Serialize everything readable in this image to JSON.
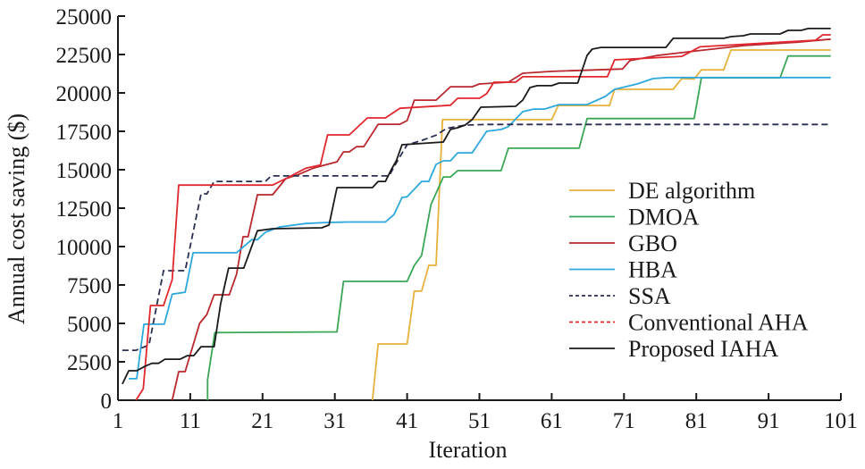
{
  "chart_data": {
    "type": "line",
    "title": "",
    "xlabel": "Iteration",
    "ylabel": "Annual cost saving ($)",
    "xlim": [
      1,
      101
    ],
    "ylim": [
      0,
      25000
    ],
    "xticks": [
      1,
      11,
      21,
      31,
      41,
      51,
      61,
      71,
      81,
      91,
      101
    ],
    "xtick_labels": [
      "1",
      "11",
      "21",
      "31",
      "41",
      "51",
      "61",
      "71",
      "81",
      "91",
      "101"
    ],
    "yticks": [
      0,
      2500,
      5000,
      7500,
      10000,
      12500,
      15000,
      17500,
      20000,
      22500,
      25000
    ],
    "ytick_labels": [
      "0",
      "2500",
      "5000",
      "7500",
      "10000",
      "12500",
      "15000",
      "17500",
      "20000",
      "22500",
      "25000"
    ],
    "grid": false,
    "legend_position": "center-right",
    "series": [
      {
        "name": "DE algorithm",
        "color": "#E8B03C",
        "dash": "solid",
        "points": [
          [
            36.2,
            0
          ],
          [
            37,
            3660
          ],
          [
            41,
            3660
          ],
          [
            42,
            7100
          ],
          [
            43,
            7100
          ],
          [
            44,
            8780
          ],
          [
            45,
            8780
          ],
          [
            45.9,
            18260
          ],
          [
            61,
            18260
          ],
          [
            61.9,
            19180
          ],
          [
            69,
            19180
          ],
          [
            69.7,
            20230
          ],
          [
            77.8,
            20230
          ],
          [
            79,
            20930
          ],
          [
            80.7,
            20900
          ],
          [
            81.7,
            21500
          ],
          [
            84.8,
            21500
          ],
          [
            85.8,
            22790
          ],
          [
            99.6,
            22790
          ]
        ]
      },
      {
        "name": "DMOA",
        "color": "#3AA656",
        "dash": "solid",
        "points": [
          [
            13.4,
            0
          ],
          [
            13.4,
            1340
          ],
          [
            14.4,
            4400
          ],
          [
            31.3,
            4450
          ],
          [
            32.2,
            7730
          ],
          [
            41,
            7730
          ],
          [
            42,
            8780
          ],
          [
            43,
            9420
          ],
          [
            44.3,
            12730
          ],
          [
            46,
            14530
          ],
          [
            47,
            14530
          ],
          [
            48,
            14940
          ],
          [
            54,
            14940
          ],
          [
            55,
            16400
          ],
          [
            64.8,
            16400
          ],
          [
            65.9,
            18330
          ],
          [
            80.7,
            18330
          ],
          [
            81.7,
            20980
          ],
          [
            92.6,
            20980
          ],
          [
            93.7,
            22400
          ],
          [
            99.6,
            22400
          ]
        ]
      },
      {
        "name": "GBO",
        "color": "#B8282E",
        "dash": "solid",
        "points": [
          [
            8.5,
            0
          ],
          [
            9.4,
            1860
          ],
          [
            10.3,
            1860
          ],
          [
            12.3,
            5000
          ],
          [
            13.3,
            5580
          ],
          [
            14.3,
            6860
          ],
          [
            16.4,
            6860
          ],
          [
            17.4,
            8200
          ],
          [
            18.3,
            10640
          ],
          [
            19,
            10640
          ],
          [
            20.3,
            13370
          ],
          [
            22.4,
            13370
          ],
          [
            24.2,
            14420
          ],
          [
            26,
            14700
          ],
          [
            28,
            15100
          ],
          [
            31.3,
            15520
          ],
          [
            32.2,
            16160
          ],
          [
            33,
            16160
          ],
          [
            34,
            16500
          ],
          [
            35,
            16500
          ],
          [
            37,
            17960
          ],
          [
            40,
            17960
          ],
          [
            41,
            18200
          ],
          [
            42,
            19530
          ],
          [
            45,
            19530
          ],
          [
            47,
            20400
          ],
          [
            50,
            20400
          ],
          [
            51,
            20580
          ],
          [
            55,
            20700
          ],
          [
            57,
            21280
          ],
          [
            61,
            21400
          ],
          [
            70.8,
            21560
          ],
          [
            71.8,
            22100
          ],
          [
            75.5,
            22430
          ],
          [
            81,
            22730
          ],
          [
            87.6,
            23080
          ],
          [
            95,
            23300
          ],
          [
            99.6,
            23500
          ]
        ]
      },
      {
        "name": "HBA",
        "color": "#2EA8DC",
        "dash": "solid",
        "points": [
          [
            2.5,
            1400
          ],
          [
            3.6,
            1400
          ],
          [
            4.6,
            4950
          ],
          [
            7.4,
            4950
          ],
          [
            8.5,
            6900
          ],
          [
            10.3,
            7030
          ],
          [
            11.4,
            9600
          ],
          [
            17.4,
            9600
          ],
          [
            19.5,
            10450
          ],
          [
            20.3,
            10450
          ],
          [
            21.4,
            10930
          ],
          [
            23.4,
            11280
          ],
          [
            27,
            11500
          ],
          [
            30,
            11570
          ],
          [
            33,
            11600
          ],
          [
            38,
            11600
          ],
          [
            39.2,
            12090
          ],
          [
            40.3,
            13200
          ],
          [
            41,
            13240
          ],
          [
            43,
            14240
          ],
          [
            44,
            14240
          ],
          [
            45,
            15350
          ],
          [
            46,
            15580
          ],
          [
            47,
            15580
          ],
          [
            48,
            16100
          ],
          [
            50,
            16100
          ],
          [
            52,
            17500
          ],
          [
            54,
            17620
          ],
          [
            55,
            17800
          ],
          [
            57,
            18780
          ],
          [
            58.5,
            18950
          ],
          [
            60,
            18950
          ],
          [
            62,
            19240
          ],
          [
            65.9,
            19240
          ],
          [
            68.4,
            19770
          ],
          [
            69.7,
            20230
          ],
          [
            72.8,
            20580
          ],
          [
            75,
            20930
          ],
          [
            77,
            21000
          ],
          [
            99.6,
            21000
          ]
        ]
      },
      {
        "name": "SSA",
        "color": "#2A2F52",
        "dash": "dashed",
        "points": [
          [
            1.6,
            3250
          ],
          [
            3.5,
            3250
          ],
          [
            5.3,
            3600
          ],
          [
            7.3,
            8430
          ],
          [
            10.3,
            8430
          ],
          [
            12.5,
            13430
          ],
          [
            13.3,
            13430
          ],
          [
            14.3,
            14240
          ],
          [
            21.4,
            14240
          ],
          [
            22.2,
            14600
          ],
          [
            38.5,
            14600
          ],
          [
            39.5,
            15450
          ],
          [
            41,
            16630
          ],
          [
            43,
            16900
          ],
          [
            45,
            17250
          ],
          [
            46.5,
            17700
          ],
          [
            49,
            17900
          ],
          [
            52,
            17950
          ],
          [
            99.6,
            17950
          ]
        ]
      },
      {
        "name": "Conventional AHA",
        "color": "#E0282E",
        "dash": "dashed",
        "points": [
          [
            3.5,
            0
          ],
          [
            4.5,
            750
          ],
          [
            5.5,
            6160
          ],
          [
            7.3,
            6160
          ],
          [
            8.5,
            7850
          ],
          [
            9.4,
            14000
          ],
          [
            22.4,
            14000
          ],
          [
            24.2,
            14420
          ],
          [
            27,
            15100
          ],
          [
            29,
            15300
          ],
          [
            30,
            17270
          ],
          [
            33,
            17270
          ],
          [
            35.5,
            18370
          ],
          [
            38,
            18370
          ],
          [
            40,
            19000
          ],
          [
            47,
            19200
          ],
          [
            48,
            19650
          ],
          [
            51,
            19650
          ],
          [
            52,
            19950
          ],
          [
            53,
            20700
          ],
          [
            56,
            20700
          ],
          [
            57,
            21050
          ],
          [
            68.7,
            21050
          ],
          [
            69.7,
            22150
          ],
          [
            79,
            22380
          ],
          [
            80.2,
            22670
          ],
          [
            81.5,
            23000
          ],
          [
            97.5,
            23430
          ],
          [
            98.5,
            23780
          ],
          [
            99.6,
            23780
          ]
        ]
      },
      {
        "name": "Proposed IAHA",
        "color": "#1A1A1A",
        "dash": "solid",
        "points": [
          [
            1.6,
            1050
          ],
          [
            2.5,
            1920
          ],
          [
            3.6,
            1920
          ],
          [
            4.7,
            2200
          ],
          [
            5.7,
            2400
          ],
          [
            6.6,
            2400
          ],
          [
            7.5,
            2670
          ],
          [
            9.6,
            2670
          ],
          [
            10.6,
            2900
          ],
          [
            11.5,
            2900
          ],
          [
            12.5,
            3480
          ],
          [
            14.3,
            3480
          ],
          [
            15.2,
            6280
          ],
          [
            16.3,
            8600
          ],
          [
            18.4,
            8600
          ],
          [
            20.3,
            11030
          ],
          [
            22.4,
            11160
          ],
          [
            29.2,
            11220
          ],
          [
            30.2,
            11400
          ],
          [
            31.3,
            13840
          ],
          [
            36.2,
            13840
          ],
          [
            37,
            14240
          ],
          [
            38,
            14240
          ],
          [
            38.8,
            15000
          ],
          [
            39.5,
            15580
          ],
          [
            40.3,
            16630
          ],
          [
            46,
            16800
          ],
          [
            47,
            17620
          ],
          [
            48,
            17730
          ],
          [
            49,
            17900
          ],
          [
            50,
            18260
          ],
          [
            51.2,
            19070
          ],
          [
            56,
            19130
          ],
          [
            57,
            19530
          ],
          [
            58,
            20350
          ],
          [
            59,
            20470
          ],
          [
            61,
            20470
          ],
          [
            62,
            20640
          ],
          [
            64.6,
            20640
          ],
          [
            65.9,
            22440
          ],
          [
            66.6,
            22850
          ],
          [
            67.8,
            22960
          ],
          [
            76.8,
            22960
          ],
          [
            77.8,
            23550
          ],
          [
            84.8,
            23550
          ],
          [
            85.8,
            23660
          ],
          [
            87.5,
            23720
          ],
          [
            88.5,
            23840
          ],
          [
            92.6,
            23840
          ],
          [
            93.7,
            24070
          ],
          [
            95.5,
            24070
          ],
          [
            96.5,
            24190
          ],
          [
            99.6,
            24190
          ]
        ]
      }
    ]
  }
}
